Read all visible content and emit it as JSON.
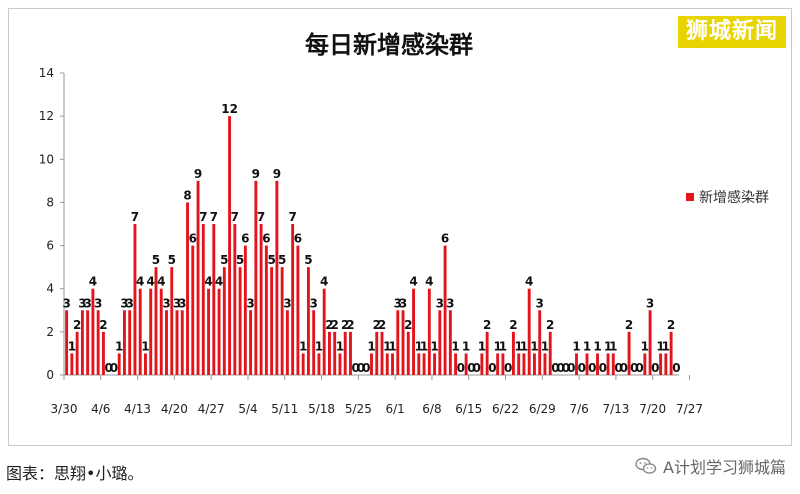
{
  "watermark": "狮城新闻",
  "caption": "图表：思翔•小璐。",
  "account": "A计划学习狮城篇",
  "chart_data": {
    "type": "bar",
    "title": "每日新增感染群",
    "xlabel": "",
    "ylabel": "",
    "ylim": [
      0,
      14
    ],
    "yticks": [
      0,
      2,
      4,
      6,
      8,
      10,
      12,
      14
    ],
    "grid": false,
    "legend_position": "right",
    "series": [
      {
        "name": "新增感染群",
        "color": "#e3141b",
        "values": [
          3,
          1,
          2,
          3,
          3,
          4,
          3,
          2,
          0,
          0,
          1,
          3,
          3,
          7,
          4,
          1,
          4,
          5,
          4,
          3,
          5,
          3,
          3,
          8,
          6,
          9,
          7,
          4,
          7,
          4,
          5,
          12,
          7,
          5,
          6,
          3,
          9,
          7,
          6,
          5,
          9,
          5,
          3,
          7,
          6,
          1,
          5,
          3,
          1,
          4,
          2,
          2,
          1,
          2,
          2,
          0,
          0,
          0,
          1,
          2,
          2,
          1,
          1,
          3,
          3,
          2,
          4,
          1,
          1,
          4,
          1,
          3,
          6,
          3,
          1,
          0,
          1,
          0,
          0,
          1,
          2,
          0,
          1,
          1,
          0,
          2,
          1,
          1,
          4,
          1,
          3,
          1,
          2,
          0,
          0,
          0,
          0,
          1,
          0,
          1,
          0,
          1,
          0,
          1,
          1,
          0,
          0,
          2,
          0,
          0,
          1,
          3,
          0,
          1,
          1,
          2,
          0
        ]
      }
    ],
    "x_tick_labels": [
      "3/30",
      "4/6",
      "4/13",
      "4/20",
      "4/27",
      "5/4",
      "5/11",
      "5/18",
      "5/25",
      "6/1",
      "6/8",
      "6/15",
      "6/22",
      "6/29",
      "7/6",
      "7/13",
      "7/20",
      "7/27"
    ]
  }
}
